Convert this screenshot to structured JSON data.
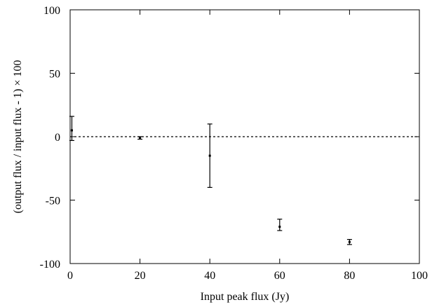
{
  "chart_data": {
    "type": "scatter",
    "title": "",
    "xlabel": "Input peak flux (Jy)",
    "ylabel": "(output flux / input flux - 1) × 100",
    "xlim": [
      0,
      100
    ],
    "ylim": [
      -100,
      100
    ],
    "xticks": [
      0,
      20,
      40,
      60,
      80,
      100
    ],
    "yticks": [
      -100,
      -50,
      0,
      50,
      100
    ],
    "xtick_labels": [
      "0",
      "20",
      "40",
      "60",
      "80",
      "100"
    ],
    "ytick_labels": [
      "-100",
      "-50",
      "0",
      "50",
      "100"
    ],
    "reference_line": {
      "y": 0,
      "style": "dashed"
    },
    "grid": false,
    "series": [
      {
        "points": [
          {
            "x": 0.5,
            "y": 5,
            "y_low": -3,
            "y_high": 16
          },
          {
            "x": 20,
            "y": -1,
            "y_low": -2,
            "y_high": 0
          },
          {
            "x": 40,
            "y": -15,
            "y_low": -40,
            "y_high": 10
          },
          {
            "x": 60,
            "y": -71,
            "y_low": -74,
            "y_high": -65
          },
          {
            "x": 80,
            "y": -83,
            "y_low": -85,
            "y_high": -81
          }
        ]
      }
    ]
  },
  "colors": {
    "axis": "#000000",
    "marks": "#000000"
  }
}
